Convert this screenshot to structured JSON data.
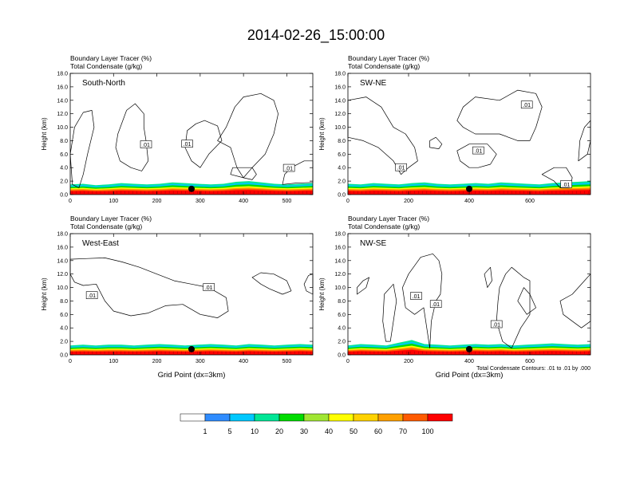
{
  "page_title": "2014-02-26_15:00:00",
  "footer_note": "Total Condensate Contours: .01 to .01 by .000",
  "colorbar": {
    "labels": [
      "1",
      "5",
      "10",
      "20",
      "30",
      "40",
      "50",
      "60",
      "70",
      "100"
    ],
    "colors": [
      "#ffffff",
      "#2f8cff",
      "#00c8ff",
      "#00e696",
      "#00dc00",
      "#a0e632",
      "#ffff00",
      "#ffd200",
      "#ffa000",
      "#ff5a00",
      "#ff0000"
    ]
  },
  "chart_data": [
    {
      "type": "contour",
      "panel": "South-North",
      "title_line1": "Boundary Layer Tracer   (%)",
      "title_line2": "Total Condensate   (g/kg)",
      "xlabel": "",
      "ylabel": "Height (km)",
      "xlim": [
        0,
        560
      ],
      "ylim": [
        0,
        18
      ],
      "xticks": [
        "0",
        "100",
        "200",
        "300",
        "400",
        "500"
      ],
      "yticks": [
        "0.0",
        "2.0",
        "4.0",
        "6.0",
        "8.0",
        "10.0",
        "12.0",
        "14.0",
        "16.0",
        "18.0"
      ],
      "contour_label": ".01",
      "marker_x": 280,
      "label_positions": [
        [
          175,
          7.4
        ],
        [
          270,
          7.5
        ],
        [
          505,
          3.9
        ]
      ],
      "contours": [
        [
          [
            10,
            10
          ],
          [
            30,
            12.2
          ],
          [
            50,
            12.5
          ],
          [
            55,
            10
          ],
          [
            40,
            6
          ],
          [
            30,
            3
          ],
          [
            20,
            1
          ],
          [
            5,
            1.5
          ],
          [
            0,
            6
          ]
        ],
        [
          [
            110,
            9
          ],
          [
            130,
            12.5
          ],
          [
            150,
            13.5
          ],
          [
            170,
            12
          ],
          [
            170,
            10
          ],
          [
            175,
            8
          ],
          [
            180,
            5
          ],
          [
            165,
            3.5
          ],
          [
            140,
            4
          ],
          [
            115,
            5
          ],
          [
            105,
            7
          ]
        ],
        [
          [
            270,
            9.5
          ],
          [
            290,
            10.5
          ],
          [
            310,
            11
          ],
          [
            340,
            10.2
          ],
          [
            350,
            8
          ],
          [
            320,
            6
          ],
          [
            300,
            4
          ],
          [
            280,
            5
          ],
          [
            265,
            7
          ]
        ],
        [
          [
            340,
            8
          ],
          [
            360,
            10
          ],
          [
            380,
            13
          ],
          [
            400,
            14.5
          ],
          [
            440,
            15
          ],
          [
            470,
            14
          ],
          [
            480,
            12
          ],
          [
            470,
            9
          ],
          [
            450,
            6
          ],
          [
            420,
            4
          ],
          [
            400,
            2.5
          ],
          [
            385,
            4
          ],
          [
            370,
            7
          ]
        ],
        [
          [
            370,
            3
          ],
          [
            400,
            2.5
          ],
          [
            420,
            2.2
          ],
          [
            430,
            3
          ],
          [
            420,
            4
          ],
          [
            400,
            4
          ],
          [
            375,
            4
          ]
        ],
        [
          [
            490,
            1.5
          ],
          [
            520,
            1.7
          ],
          [
            560,
            1.8
          ],
          [
            560,
            5
          ],
          [
            540,
            5
          ],
          [
            510,
            4
          ],
          [
            495,
            3
          ]
        ]
      ],
      "tracer_profile": [
        1.5,
        1.6,
        1.4,
        1.5,
        1.7,
        1.6,
        1.5,
        1.6,
        1.8,
        1.7,
        1.6,
        1.5,
        1.6,
        1.9,
        2.0,
        1.8,
        1.6,
        1.5,
        1.6,
        1.7
      ]
    },
    {
      "type": "contour",
      "panel": "SW-NE",
      "title_line1": "Boundary Layer Tracer   (%)",
      "title_line2": "Total Condensate   (g/kg)",
      "xlabel": "",
      "ylabel": "Height (km)",
      "xlim": [
        0,
        800
      ],
      "ylim": [
        0,
        18
      ],
      "xticks": [
        "0",
        "200",
        "400",
        "600"
      ],
      "yticks": [
        "0.0",
        "2.0",
        "4.0",
        "6.0",
        "8.0",
        "10.0",
        "12.0",
        "14.0",
        "16.0",
        "18.0"
      ],
      "contour_label": ".01",
      "marker_x": 400,
      "label_positions": [
        [
          175,
          4.0
        ],
        [
          430,
          6.5
        ],
        [
          590,
          13.3
        ],
        [
          720,
          1.5
        ]
      ],
      "contours": [
        [
          [
            0,
            14
          ],
          [
            60,
            14.5
          ],
          [
            110,
            13
          ],
          [
            150,
            10
          ],
          [
            190,
            9
          ],
          [
            220,
            7
          ],
          [
            230,
            5
          ],
          [
            200,
            4
          ],
          [
            175,
            3
          ],
          [
            150,
            5
          ],
          [
            100,
            7
          ],
          [
            50,
            8
          ],
          [
            0,
            8.5
          ]
        ],
        [
          [
            270,
            7
          ],
          [
            300,
            6.8
          ],
          [
            310,
            7.5
          ],
          [
            290,
            8.5
          ],
          [
            270,
            8
          ]
        ],
        [
          [
            360,
            6.5
          ],
          [
            400,
            7.5
          ],
          [
            460,
            7.5
          ],
          [
            490,
            6
          ],
          [
            470,
            4.5
          ],
          [
            430,
            4
          ],
          [
            400,
            4
          ],
          [
            370,
            5
          ]
        ],
        [
          [
            360,
            11
          ],
          [
            380,
            13
          ],
          [
            420,
            14.5
          ],
          [
            500,
            14
          ],
          [
            560,
            15.5
          ],
          [
            620,
            15
          ],
          [
            640,
            13
          ],
          [
            620,
            10
          ],
          [
            600,
            8
          ],
          [
            560,
            8
          ],
          [
            500,
            9
          ],
          [
            420,
            9
          ],
          [
            380,
            10
          ]
        ],
        [
          [
            640,
            3
          ],
          [
            680,
            2
          ],
          [
            700,
            1
          ],
          [
            730,
            1
          ],
          [
            740,
            2.5
          ],
          [
            720,
            4
          ],
          [
            680,
            4
          ]
        ],
        [
          [
            760,
            5
          ],
          [
            790,
            6
          ],
          [
            800,
            8
          ],
          [
            800,
            11
          ],
          [
            780,
            10
          ],
          [
            765,
            8
          ]
        ]
      ],
      "tracer_profile": [
        1.6,
        1.5,
        1.7,
        1.6,
        1.5,
        1.7,
        1.8,
        1.6,
        1.5,
        1.6,
        1.7,
        1.6,
        1.8,
        1.7,
        1.6,
        1.5,
        1.7,
        1.8,
        1.9,
        2.0
      ]
    },
    {
      "type": "contour",
      "panel": "West-East",
      "title_line1": "Boundary Layer Tracer   (%)",
      "title_line2": "Total Condensate   (g/kg)",
      "xlabel": "Grid Point (dx=3km)",
      "ylabel": "Height (km)",
      "xlim": [
        0,
        560
      ],
      "ylim": [
        0,
        18
      ],
      "xticks": [
        "0",
        "100",
        "200",
        "300",
        "400",
        "500"
      ],
      "yticks": [
        "0.0",
        "2.0",
        "4.0",
        "6.0",
        "8.0",
        "10.0",
        "12.0",
        "14.0",
        "16.0",
        "18.0"
      ],
      "contour_label": ".01",
      "marker_x": 280,
      "label_positions": [
        [
          50,
          8.8
        ],
        [
          320,
          10.0
        ]
      ],
      "contours": [
        [
          [
            0,
            14.2
          ],
          [
            40,
            14.3
          ],
          [
            80,
            14.4
          ],
          [
            120,
            13.8
          ],
          [
            160,
            13
          ],
          [
            200,
            12
          ],
          [
            240,
            11
          ],
          [
            280,
            10.5
          ],
          [
            320,
            10
          ],
          [
            360,
            8.5
          ],
          [
            365,
            6.5
          ],
          [
            340,
            5.5
          ],
          [
            300,
            6
          ],
          [
            260,
            7.5
          ],
          [
            220,
            7.3
          ],
          [
            180,
            6.2
          ],
          [
            140,
            5.8
          ],
          [
            100,
            6.5
          ],
          [
            80,
            8
          ],
          [
            60,
            10.5
          ],
          [
            30,
            10.3
          ],
          [
            10,
            10.8
          ],
          [
            0,
            12
          ]
        ],
        [
          [
            420,
            11.5
          ],
          [
            440,
            12.2
          ],
          [
            470,
            12
          ],
          [
            500,
            11
          ],
          [
            510,
            9.5
          ],
          [
            490,
            9
          ],
          [
            460,
            9.8
          ],
          [
            440,
            10.5
          ]
        ],
        [
          [
            540,
            10.5
          ],
          [
            550,
            11.8
          ],
          [
            560,
            12
          ],
          [
            560,
            9
          ],
          [
            545,
            9.5
          ]
        ]
      ],
      "tracer_profile": [
        1.4,
        1.5,
        1.4,
        1.5,
        1.5,
        1.4,
        1.5,
        1.6,
        1.5,
        1.4,
        1.5,
        1.6,
        1.5,
        1.4,
        1.6,
        1.5,
        1.4,
        1.5,
        1.6,
        1.5
      ]
    },
    {
      "type": "contour",
      "panel": "NW-SE",
      "title_line1": "Boundary Layer Tracer   (%)",
      "title_line2": "Total Condensate   (g/kg)",
      "xlabel": "Grid Point (dx=3km)",
      "ylabel": "Height (km)",
      "xlim": [
        0,
        800
      ],
      "ylim": [
        0,
        18
      ],
      "xticks": [
        "0",
        "200",
        "400",
        "600"
      ],
      "yticks": [
        "0.0",
        "2.0",
        "4.0",
        "6.0",
        "8.0",
        "10.0",
        "12.0",
        "14.0",
        "16.0",
        "18.0"
      ],
      "contour_label": ".01",
      "marker_x": 400,
      "label_positions": [
        [
          225,
          8.7
        ],
        [
          290,
          7.5
        ],
        [
          490,
          4.5
        ]
      ],
      "contours": [
        [
          [
            30,
            9
          ],
          [
            60,
            10
          ],
          [
            70,
            11.5
          ],
          [
            50,
            11
          ],
          [
            30,
            10
          ]
        ],
        [
          [
            120,
            9
          ],
          [
            150,
            10.5
          ],
          [
            160,
            8
          ],
          [
            150,
            5
          ],
          [
            140,
            2
          ],
          [
            125,
            2
          ],
          [
            115,
            5
          ]
        ],
        [
          [
            180,
            10
          ],
          [
            200,
            12
          ],
          [
            240,
            14.5
          ],
          [
            280,
            15
          ],
          [
            300,
            14
          ],
          [
            310,
            12
          ],
          [
            305,
            9
          ],
          [
            290,
            8
          ],
          [
            275,
            5
          ],
          [
            270,
            1
          ],
          [
            260,
            4
          ],
          [
            250,
            7
          ],
          [
            220,
            6
          ],
          [
            190,
            7
          ]
        ],
        [
          [
            450,
            12
          ],
          [
            470,
            13
          ],
          [
            475,
            11
          ],
          [
            460,
            10
          ]
        ],
        [
          [
            500,
            10
          ],
          [
            520,
            12
          ],
          [
            540,
            13
          ],
          [
            580,
            11.5
          ],
          [
            600,
            11
          ],
          [
            600,
            6
          ],
          [
            570,
            4
          ],
          [
            540,
            1
          ],
          [
            510,
            2
          ],
          [
            490,
            5
          ],
          [
            495,
            8
          ]
        ],
        [
          [
            560,
            8
          ],
          [
            580,
            10
          ],
          [
            600,
            9
          ],
          [
            620,
            7
          ],
          [
            590,
            6
          ]
        ],
        [
          [
            700,
            8
          ],
          [
            740,
            9
          ],
          [
            780,
            11
          ],
          [
            800,
            12
          ],
          [
            800,
            5
          ],
          [
            770,
            4
          ],
          [
            740,
            5
          ],
          [
            710,
            6
          ]
        ]
      ],
      "tracer_profile": [
        1.4,
        1.6,
        1.5,
        1.4,
        1.8,
        2.2,
        1.6,
        1.5,
        1.4,
        1.5,
        1.6,
        1.5,
        1.6,
        1.4,
        1.5,
        1.6,
        1.7,
        1.6,
        1.5,
        1.6
      ]
    }
  ]
}
